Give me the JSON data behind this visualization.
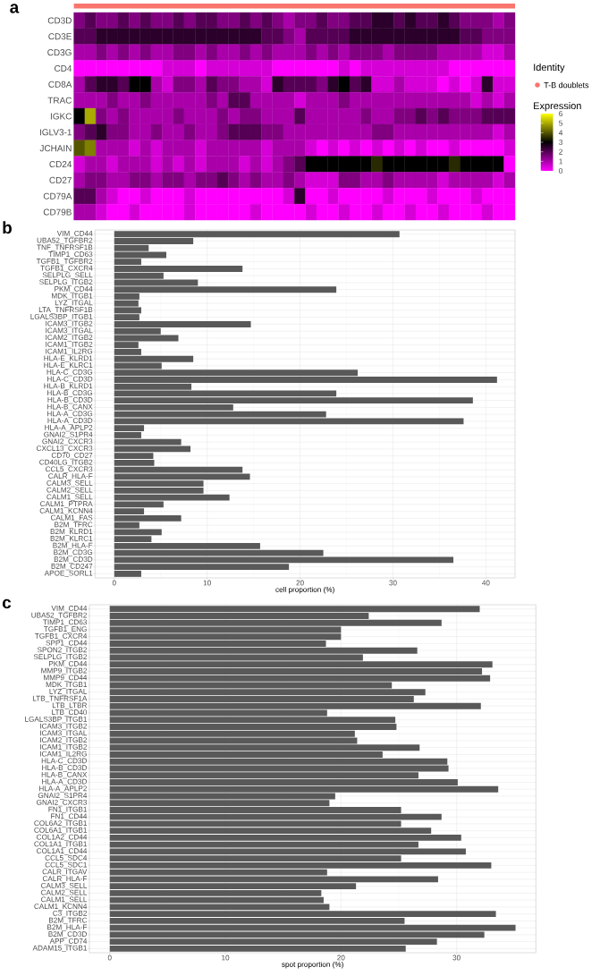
{
  "chart_data": [
    {
      "type": "heatmap",
      "title": "a",
      "categories": [
        null,
        null,
        null,
        null,
        null,
        null,
        null,
        null,
        null,
        null,
        null,
        null,
        null,
        null,
        null,
        null,
        null,
        null,
        null,
        null,
        null,
        null,
        null,
        null,
        null,
        null,
        null,
        null,
        null,
        null,
        null,
        null,
        null,
        null,
        null,
        null,
        null,
        null,
        null,
        null
      ],
      "y_categories": [
        "CD3D",
        "CD3E",
        "CD3G",
        "CD4",
        "CD8A",
        "TRAC",
        "IGKC",
        "IGLV3-1",
        "JCHAIN",
        "CD24",
        "CD27",
        "CD79A",
        "CD79B"
      ],
      "cells": [
        [
          1.5,
          2,
          1.5,
          1.5,
          2,
          1.5,
          2,
          1.5,
          1.5,
          2,
          1.5,
          2,
          2,
          1.5,
          1.5,
          2,
          1.5,
          2,
          1.5,
          1,
          1.5,
          1.5,
          2,
          1.5,
          1.5,
          2,
          2,
          2.5,
          2.5,
          2,
          2.5,
          2,
          2,
          2.5,
          2,
          1.5,
          1.5,
          1.5,
          1,
          1.5
        ],
        [
          2,
          2,
          2.5,
          2.5,
          2.5,
          2.5,
          2.5,
          2.5,
          2.5,
          2.5,
          2.5,
          2.5,
          2.5,
          2.5,
          2.5,
          2.5,
          2.5,
          2,
          2,
          1.5,
          1,
          2,
          2,
          2,
          2,
          2.5,
          2.5,
          2.5,
          2.5,
          2.5,
          2.5,
          2.5,
          2.5,
          2.5,
          2.5,
          2,
          2,
          1.5,
          1.5,
          1.5
        ],
        [
          1,
          1,
          1.5,
          1,
          1.5,
          1,
          1.5,
          1,
          1,
          1.5,
          1.5,
          1,
          1.5,
          1,
          1,
          1.5,
          1,
          1.5,
          1,
          1,
          1,
          1.5,
          1,
          1.5,
          1,
          1.5,
          1.5,
          1.5,
          1,
          1.5,
          1.5,
          1.5,
          1.5,
          1,
          1,
          1,
          1,
          0.5,
          0.5,
          1
        ],
        [
          0,
          0,
          0,
          0,
          0,
          0,
          0,
          0,
          0.5,
          0.5,
          0.5,
          0,
          0.5,
          0.5,
          0.5,
          0.5,
          0.5,
          0.5,
          0,
          0,
          0,
          0,
          0,
          0,
          0.5,
          0,
          0.5,
          0.5,
          0.5,
          0.5,
          0.5,
          0.5,
          0.5,
          0.5,
          0,
          0,
          0,
          0,
          0,
          0
        ],
        [
          1,
          2,
          2.5,
          2.5,
          2,
          3,
          3,
          1,
          0.5,
          1.5,
          1.5,
          1,
          2,
          1.5,
          1.5,
          1,
          1,
          0.5,
          2.5,
          2,
          2,
          2,
          1.5,
          2.5,
          3,
          2,
          2.5,
          0.5,
          0.5,
          1,
          0.5,
          0.5,
          0.5,
          0,
          0.5,
          0,
          0.5,
          2.5,
          0.5,
          0.5
        ],
        [
          1,
          1,
          1,
          1.5,
          1,
          1,
          1.5,
          1,
          1,
          1,
          1,
          1,
          1.5,
          1,
          2,
          2,
          1,
          1,
          1,
          1,
          0.5,
          1,
          1,
          1,
          1.5,
          1,
          1,
          1,
          1,
          1,
          1,
          1,
          1,
          1,
          1,
          1,
          0.5,
          1,
          0.5,
          1
        ],
        [
          3,
          5,
          1.5,
          1,
          1.5,
          1,
          1,
          1,
          1,
          1.5,
          1,
          1,
          1,
          1.5,
          1,
          1.5,
          1.5,
          1,
          1,
          1,
          2,
          1,
          1,
          1,
          1,
          1,
          1.5,
          1,
          1,
          1.5,
          1.5,
          2,
          1.5,
          2,
          1.5,
          1.5,
          1.5,
          2,
          2,
          2
        ],
        [
          1.5,
          2,
          2.5,
          1.5,
          1.5,
          1,
          1,
          1.5,
          1,
          1,
          1.5,
          1,
          1,
          1.5,
          2,
          2,
          2,
          1.5,
          1.5,
          1,
          1,
          1,
          1,
          1,
          1,
          1,
          1,
          1.5,
          1.5,
          1,
          1,
          1,
          1,
          1,
          1,
          1,
          1,
          1,
          0.5,
          1
        ],
        [
          4,
          4.5,
          1,
          1,
          1,
          0.5,
          1,
          0.5,
          1,
          1,
          1,
          0.5,
          1,
          1,
          1,
          1,
          1,
          0.5,
          1,
          1,
          1,
          0.5,
          0,
          0.5,
          0,
          0.5,
          0,
          0.5,
          0,
          0.5,
          0,
          0.5,
          0,
          0,
          0.5,
          0,
          0,
          0,
          0,
          0.5
        ],
        [
          0.5,
          1,
          1,
          0.5,
          1,
          1,
          1,
          0.5,
          1,
          0.5,
          1,
          0.5,
          1,
          1,
          1,
          0.5,
          1,
          0.5,
          1,
          1.5,
          2,
          3,
          3,
          3,
          3,
          3,
          3,
          3.5,
          3,
          3,
          3,
          3,
          3,
          3,
          3.5,
          3,
          3,
          3,
          3,
          0
        ],
        [
          1,
          1.5,
          1.5,
          1,
          1,
          1.5,
          1.5,
          1,
          1.5,
          1.5,
          1,
          1.5,
          1.5,
          2,
          1.5,
          1,
          1.5,
          1,
          1,
          1.5,
          1,
          0.5,
          0.5,
          0.5,
          1.5,
          1.5,
          1,
          1,
          1.5,
          1,
          1,
          1,
          1,
          0.5,
          1,
          1,
          1,
          1,
          0.5,
          1
        ],
        [
          2,
          2,
          1,
          0.5,
          0,
          0,
          0.5,
          0,
          0,
          0,
          0.5,
          0,
          0,
          0,
          0,
          0,
          0,
          0,
          0,
          0.5,
          2.5,
          0,
          0,
          0.5,
          0,
          0,
          0,
          0,
          0.5,
          0,
          0,
          0,
          0.5,
          0,
          0,
          0,
          0.5,
          0,
          0,
          0
        ],
        [
          1,
          1,
          0.5,
          0,
          0,
          0.5,
          0,
          0,
          0,
          0,
          0.5,
          0,
          0,
          0,
          0,
          0,
          0.5,
          0,
          0,
          0,
          0,
          0.5,
          0,
          0,
          0.5,
          0,
          0,
          0.5,
          0,
          0,
          0.5,
          0,
          0,
          0.5,
          0,
          0,
          0,
          0.5,
          0,
          0
        ]
      ],
      "clim": [
        0,
        6
      ],
      "cticks": [
        0,
        1,
        2,
        3,
        4,
        5,
        6
      ],
      "clabel": "Expression",
      "legend_title": "Identity",
      "annotations": [
        "T-B doublets"
      ]
    },
    {
      "type": "bar",
      "orientation": "horizontal",
      "title": "b",
      "xlabel": "cell proportion (%)",
      "categories": [
        "VIM_CD44",
        "UBA52_TGFBR2",
        "TNF_TNFRSF1B",
        "TIMP1_CD63",
        "TGFB1_TGFBR2",
        "TGFB1_CXCR4",
        "SELPLG_SELL",
        "SELPLG_ITGB2",
        "PKM_CD44",
        "MDK_ITGB1",
        "LYZ_ITGAL",
        "LTA_TNFRSF1B",
        "LGALS3BP_ITGB1",
        "ICAM3_ITGB2",
        "ICAM3_ITGAL",
        "ICAM2_ITGB2",
        "ICAM1_ITGB2",
        "ICAM1_IL2RG",
        "HLA-E_KLRD1",
        "HLA-E_KLRC1",
        "HLA-C_CD3G",
        "HLA-C_CD3D",
        "HLA-B_KLRD1",
        "HLA-B_CD3G",
        "HLA-B_CD3D",
        "HLA-B_CANX",
        "HLA-A_CD3G",
        "HLA-A_CD3D",
        "HLA-A_APLP2",
        "GNAI2_S1PR4",
        "GNAI2_CXCR3",
        "CXCL13_CXCR3",
        "CD70_CD27",
        "CD40LG_ITGB2",
        "CCL5_CXCR3",
        "CALR_HLA-F",
        "CALM3_SELL",
        "CALM2_SELL",
        "CALM1_SELL",
        "CALM1_PTPRA",
        "CALM1_KCNN4",
        "CALM1_FAS",
        "B2M_TFRC",
        "B2M_KLRD1",
        "B2M_KLRC1",
        "B2M_HLA-F",
        "B2M_CD3G",
        "B2M_CD3D",
        "B2M_CD247",
        "APOE_SORL1"
      ],
      "values": [
        30.7,
        8.5,
        3.7,
        5.6,
        2.9,
        13.8,
        5.3,
        9.0,
        23.9,
        2.7,
        2.6,
        2.9,
        2.7,
        14.7,
        5.0,
        6.9,
        2.6,
        2.9,
        8.5,
        5.1,
        26.2,
        41.2,
        8.3,
        23.9,
        38.6,
        12.8,
        22.8,
        37.6,
        3.2,
        2.9,
        7.2,
        8.2,
        4.2,
        4.3,
        13.8,
        14.6,
        9.6,
        9.6,
        12.4,
        5.3,
        3.2,
        7.2,
        2.7,
        5.1,
        4.0,
        15.7,
        22.5,
        36.5,
        18.8,
        2.9
      ],
      "color": "#595959",
      "xlim": [
        -2.07,
        43.14
      ],
      "xticks": [
        0,
        10,
        20,
        30,
        40
      ],
      "grid": true
    },
    {
      "type": "bar",
      "orientation": "horizontal",
      "title": "c",
      "xlabel": "spot proportion (%)",
      "categories": [
        "VIM_CD44",
        "UBA52_TGFBR2",
        "TIMP1_CD63",
        "TGFB1_ENG",
        "TGFB1_CXCR4",
        "SPP1_CD44",
        "SPON2_ITGB2",
        "SELPLG_ITGB2",
        "PKM_CD44",
        "MMP9_ITGB2",
        "MMP9_CD44",
        "MDK_ITGB1",
        "LYZ_ITGAL",
        "LTB_TNFRSF1A",
        "LTB_LTBR",
        "LTB_CD40",
        "LGALS3BP_ITGB1",
        "ICAM3_ITGB2",
        "ICAM3_ITGAL",
        "ICAM2_ITGB2",
        "ICAM1_ITGB2",
        "ICAM1_IL2RG",
        "HLA-C_CD3D",
        "HLA-B_CD3D",
        "HLA-B_CANX",
        "HLA-A_CD3D",
        "HLA-A_APLP2",
        "GNAI2_S1PR4",
        "GNAI2_CXCR3",
        "FN1_ITGB1",
        "FN1_CD44",
        "COL6A2_ITGB1",
        "COL6A1_ITGB1",
        "COL1A2_CD44",
        "COL1A1_ITGB1",
        "COL1A1_CD44",
        "CCL5_SDC4",
        "CCL5_SDC1",
        "CALR_ITGAV",
        "CALR_HLA-F",
        "CALM3_SELL",
        "CALM2_SELL",
        "CALM1_SELL",
        "CALM1_KCNN4",
        "C3_ITGB2",
        "B2M_TFRC",
        "B2M_HLA-F",
        "B2M_CD3D",
        "APP_CD74",
        "ADAM15_ITGB1"
      ],
      "values": [
        32.0,
        22.4,
        28.7,
        20.0,
        20.0,
        18.7,
        26.6,
        21.9,
        33.1,
        32.2,
        32.9,
        24.4,
        27.3,
        26.3,
        32.1,
        18.8,
        24.7,
        24.8,
        21.2,
        21.4,
        26.8,
        23.6,
        29.2,
        29.3,
        26.7,
        30.1,
        33.6,
        19.5,
        19.0,
        25.2,
        28.7,
        25.2,
        27.8,
        30.4,
        26.7,
        30.8,
        25.2,
        33.0,
        18.8,
        28.4,
        21.3,
        18.3,
        18.5,
        19.0,
        33.4,
        25.5,
        35.1,
        32.4,
        28.3,
        25.6
      ],
      "color": "#595959",
      "xlim": [
        -1.76,
        36.86
      ],
      "xticks": [
        0,
        10,
        20,
        30
      ],
      "grid": true
    }
  ]
}
